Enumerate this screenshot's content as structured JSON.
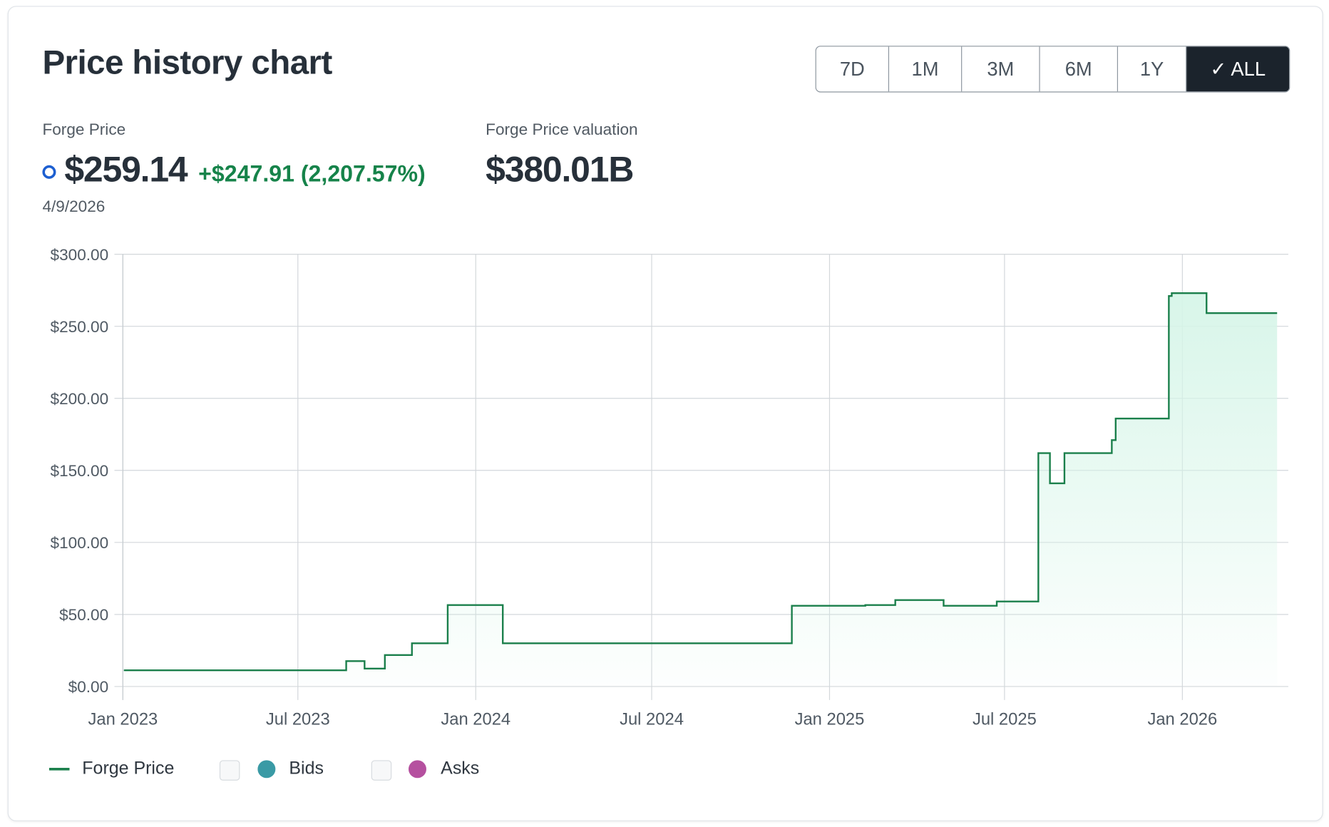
{
  "title": "Price history chart",
  "ranges": [
    {
      "label": "7D",
      "selected": false
    },
    {
      "label": "1M",
      "selected": false
    },
    {
      "label": "3M",
      "selected": false
    },
    {
      "label": "6M",
      "selected": false
    },
    {
      "label": "1Y",
      "selected": false
    },
    {
      "label": "✓ ALL",
      "selected": true
    }
  ],
  "summary": {
    "price_label": "Forge Price",
    "price": "$259.14",
    "change": "+$247.91 (2,207.57%)",
    "date": "4/9/2026",
    "valuation_label": "Forge Price valuation",
    "valuation": "$380.01B"
  },
  "colors": {
    "line": "#1a7f4b",
    "fill": "#d6f5e8",
    "bids": "#3a9aa5",
    "asks": "#b5509f",
    "marker": "#1d5fd1"
  },
  "chart_data": {
    "type": "line",
    "step": true,
    "title": "Price history chart",
    "xlabel": "",
    "ylabel": "",
    "ylim": [
      0,
      300
    ],
    "xlim": [
      "2023-01-01",
      "2026-04-20"
    ],
    "yticks": [
      "$0.00",
      "$50.00",
      "$100.00",
      "$150.00",
      "$200.00",
      "$250.00",
      "$300.00"
    ],
    "ytick_values": [
      0,
      50,
      100,
      150,
      200,
      250,
      300
    ],
    "xticks": [
      {
        "label": "Jan 2023",
        "date": "2023-01-01"
      },
      {
        "label": "Jul 2023",
        "date": "2023-07-01"
      },
      {
        "label": "Jan 2024",
        "date": "2024-01-01"
      },
      {
        "label": "Jul 2024",
        "date": "2024-07-01"
      },
      {
        "label": "Jan 2025",
        "date": "2025-01-01"
      },
      {
        "label": "Jul 2025",
        "date": "2025-07-01"
      },
      {
        "label": "Jan 2026",
        "date": "2026-01-01"
      }
    ],
    "grid": true,
    "legend_position": "bottom-left",
    "legend": [
      {
        "name": "Forge Price",
        "enabled": true
      },
      {
        "name": "Bids",
        "enabled": false
      },
      {
        "name": "Asks",
        "enabled": false
      }
    ],
    "series": [
      {
        "name": "Forge Price",
        "points": [
          [
            "2023-01-02",
            11.23
          ],
          [
            "2023-08-20",
            17.6
          ],
          [
            "2023-09-08",
            12.4
          ],
          [
            "2023-09-29",
            21.8
          ],
          [
            "2023-10-27",
            30.0
          ],
          [
            "2023-12-03",
            56.5
          ],
          [
            "2024-01-29",
            30.0
          ],
          [
            "2024-11-23",
            56.0
          ],
          [
            "2025-02-07",
            56.5
          ],
          [
            "2025-03-10",
            60.0
          ],
          [
            "2025-04-29",
            56.0
          ],
          [
            "2025-06-23",
            59.0
          ],
          [
            "2025-08-05",
            162.0
          ],
          [
            "2025-08-17",
            141.0
          ],
          [
            "2025-09-01",
            162.0
          ],
          [
            "2025-10-20",
            171.0
          ],
          [
            "2025-10-24",
            186.0
          ],
          [
            "2025-12-18",
            271.0
          ],
          [
            "2025-12-21",
            273.0
          ],
          [
            "2026-01-26",
            259.14
          ],
          [
            "2026-04-09",
            259.14
          ]
        ]
      }
    ]
  }
}
